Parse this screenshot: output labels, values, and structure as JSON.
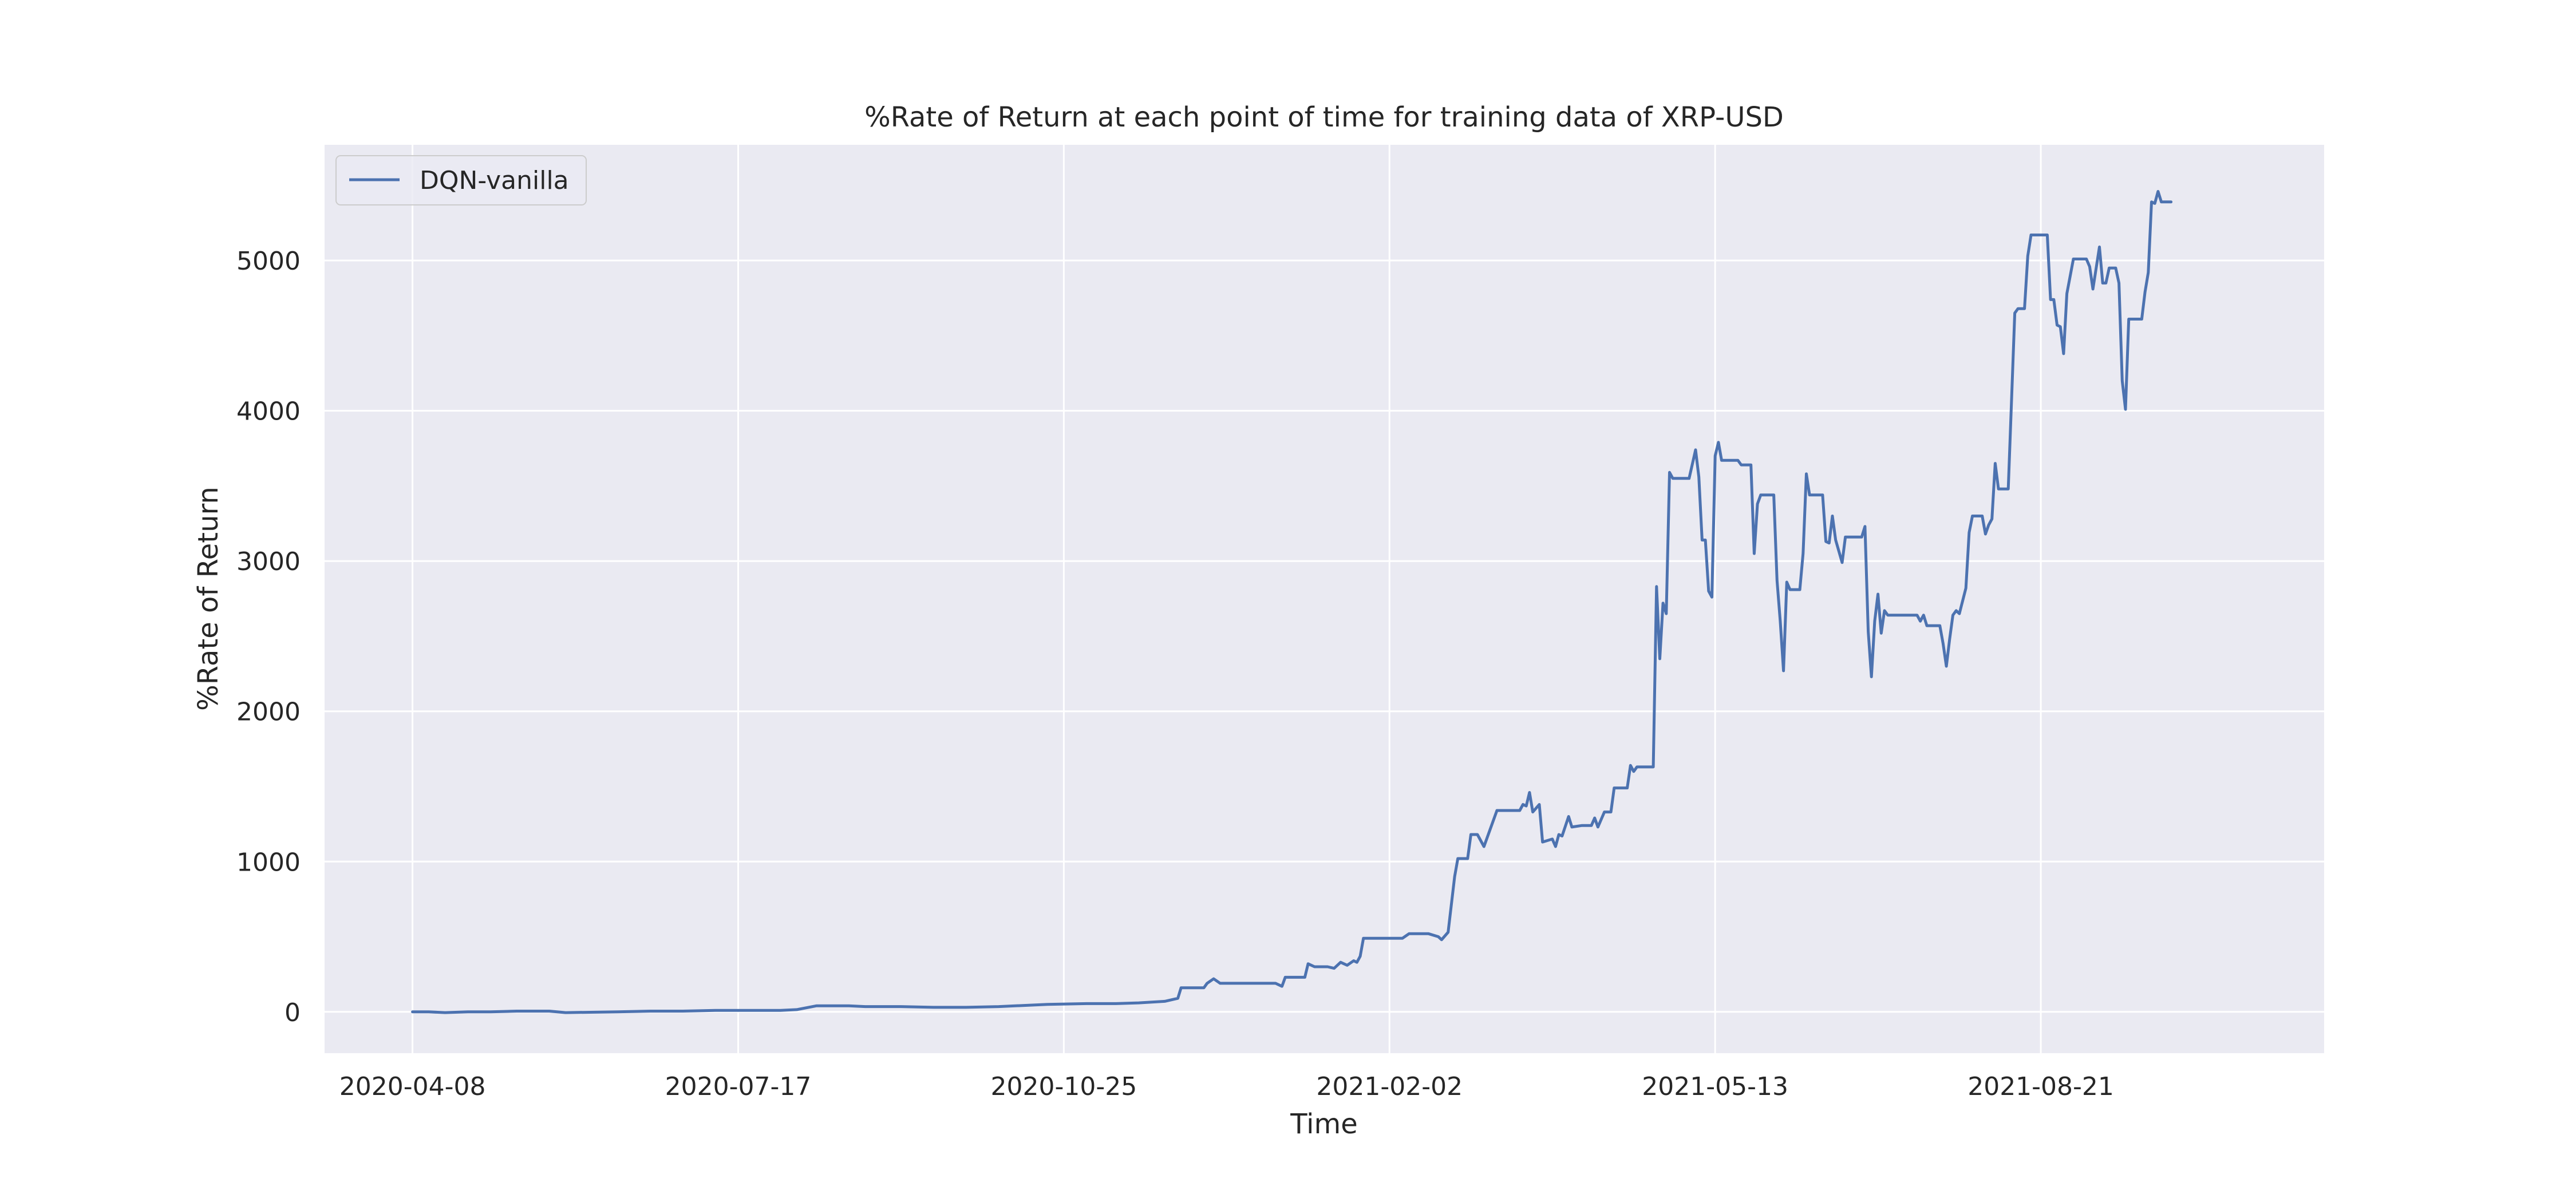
{
  "chart_data": {
    "type": "line",
    "title": "%Rate of Return at each point of time for training data of XRP-USD",
    "xlabel": "Time",
    "ylabel": "%Rate of Return",
    "xlim": [
      "2020-03-12",
      "2021-11-16"
    ],
    "ylim": [
      -275,
      5770
    ],
    "x_ticks": [
      "2020-04-08",
      "2020-07-17",
      "2020-10-25",
      "2021-02-02",
      "2021-05-13",
      "2021-08-21"
    ],
    "y_ticks": [
      0,
      1000,
      2000,
      3000,
      4000,
      5000
    ],
    "grid": true,
    "legend": {
      "position": "top-left",
      "entries": [
        "DQN-vanilla"
      ]
    },
    "colors": {
      "background": "#eaeaf2",
      "grid": "#ffffff",
      "line": "#4c72b0",
      "text": "#262626"
    },
    "series": [
      {
        "name": "DQN-vanilla",
        "points": [
          [
            "2020-04-08",
            0
          ],
          [
            "2020-04-13",
            0
          ],
          [
            "2020-04-18",
            -5
          ],
          [
            "2020-04-25",
            0
          ],
          [
            "2020-05-02",
            0
          ],
          [
            "2020-05-10",
            5
          ],
          [
            "2020-05-20",
            5
          ],
          [
            "2020-05-25",
            -5
          ],
          [
            "2020-06-10",
            0
          ],
          [
            "2020-06-20",
            5
          ],
          [
            "2020-06-30",
            5
          ],
          [
            "2020-07-10",
            10
          ],
          [
            "2020-07-30",
            10
          ],
          [
            "2020-08-04",
            15
          ],
          [
            "2020-08-10",
            40
          ],
          [
            "2020-08-20",
            40
          ],
          [
            "2020-08-25",
            35
          ],
          [
            "2020-09-05",
            35
          ],
          [
            "2020-09-15",
            30
          ],
          [
            "2020-09-25",
            30
          ],
          [
            "2020-10-05",
            35
          ],
          [
            "2020-10-20",
            50
          ],
          [
            "2020-11-01",
            55
          ],
          [
            "2020-11-10",
            55
          ],
          [
            "2020-11-17",
            60
          ],
          [
            "2020-11-25",
            70
          ],
          [
            "2020-11-29",
            90
          ],
          [
            "2020-11-30",
            160
          ],
          [
            "2020-12-07",
            160
          ],
          [
            "2020-12-08",
            190
          ],
          [
            "2020-12-10",
            220
          ],
          [
            "2020-12-12",
            190
          ],
          [
            "2020-12-24",
            190
          ],
          [
            "2020-12-29",
            190
          ],
          [
            "2020-12-31",
            170
          ],
          [
            "2021-01-01",
            230
          ],
          [
            "2021-01-07",
            230
          ],
          [
            "2021-01-08",
            320
          ],
          [
            "2021-01-10",
            300
          ],
          [
            "2021-01-14",
            300
          ],
          [
            "2021-01-16",
            290
          ],
          [
            "2021-01-18",
            330
          ],
          [
            "2021-01-20",
            310
          ],
          [
            "2021-01-22",
            340
          ],
          [
            "2021-01-23",
            330
          ],
          [
            "2021-01-24",
            370
          ],
          [
            "2021-01-25",
            490
          ],
          [
            "2021-01-30",
            490
          ],
          [
            "2021-02-06",
            490
          ],
          [
            "2021-02-08",
            520
          ],
          [
            "2021-02-14",
            520
          ],
          [
            "2021-02-17",
            500
          ],
          [
            "2021-02-18",
            480
          ],
          [
            "2021-02-20",
            530
          ],
          [
            "2021-02-22",
            900
          ],
          [
            "2021-02-23",
            1020
          ],
          [
            "2021-02-26",
            1020
          ],
          [
            "2021-02-27",
            1180
          ],
          [
            "2021-03-01",
            1180
          ],
          [
            "2021-03-03",
            1100
          ],
          [
            "2021-03-07",
            1340
          ],
          [
            "2021-03-14",
            1340
          ],
          [
            "2021-03-15",
            1380
          ],
          [
            "2021-03-16",
            1370
          ],
          [
            "2021-03-17",
            1460
          ],
          [
            "2021-03-18",
            1330
          ],
          [
            "2021-03-20",
            1380
          ],
          [
            "2021-03-21",
            1130
          ],
          [
            "2021-03-24",
            1150
          ],
          [
            "2021-03-25",
            1100
          ],
          [
            "2021-03-26",
            1180
          ],
          [
            "2021-03-27",
            1170
          ],
          [
            "2021-03-29",
            1300
          ],
          [
            "2021-03-30",
            1230
          ],
          [
            "2021-04-02",
            1240
          ],
          [
            "2021-04-05",
            1240
          ],
          [
            "2021-04-06",
            1290
          ],
          [
            "2021-04-07",
            1230
          ],
          [
            "2021-04-09",
            1330
          ],
          [
            "2021-04-11",
            1330
          ],
          [
            "2021-04-12",
            1490
          ],
          [
            "2021-04-16",
            1490
          ],
          [
            "2021-04-17",
            1640
          ],
          [
            "2021-04-18",
            1600
          ],
          [
            "2021-04-19",
            1630
          ],
          [
            "2021-04-24",
            1630
          ],
          [
            "2021-04-25",
            2830
          ],
          [
            "2021-04-26",
            2350
          ],
          [
            "2021-04-27",
            2720
          ],
          [
            "2021-04-28",
            2650
          ],
          [
            "2021-04-29",
            3590
          ],
          [
            "2021-04-30",
            3550
          ],
          [
            "2021-05-05",
            3550
          ],
          [
            "2021-05-07",
            3740
          ],
          [
            "2021-05-08",
            3560
          ],
          [
            "2021-05-09",
            3140
          ],
          [
            "2021-05-10",
            3140
          ],
          [
            "2021-05-11",
            2800
          ],
          [
            "2021-05-12",
            2760
          ],
          [
            "2021-05-13",
            3700
          ],
          [
            "2021-05-14",
            3790
          ],
          [
            "2021-05-15",
            3670
          ],
          [
            "2021-05-20",
            3670
          ],
          [
            "2021-05-21",
            3640
          ],
          [
            "2021-05-24",
            3640
          ],
          [
            "2021-05-25",
            3050
          ],
          [
            "2021-05-26",
            3380
          ],
          [
            "2021-05-27",
            3440
          ],
          [
            "2021-05-31",
            3440
          ],
          [
            "2021-06-01",
            2870
          ],
          [
            "2021-06-02",
            2600
          ],
          [
            "2021-06-03",
            2270
          ],
          [
            "2021-06-04",
            2860
          ],
          [
            "2021-06-05",
            2810
          ],
          [
            "2021-06-08",
            2810
          ],
          [
            "2021-06-09",
            3050
          ],
          [
            "2021-06-10",
            3580
          ],
          [
            "2021-06-11",
            3440
          ],
          [
            "2021-06-15",
            3440
          ],
          [
            "2021-06-16",
            3130
          ],
          [
            "2021-06-17",
            3120
          ],
          [
            "2021-06-18",
            3300
          ],
          [
            "2021-06-19",
            3140
          ],
          [
            "2021-06-21",
            2990
          ],
          [
            "2021-06-22",
            3160
          ],
          [
            "2021-06-27",
            3160
          ],
          [
            "2021-06-28",
            3230
          ],
          [
            "2021-06-29",
            2530
          ],
          [
            "2021-06-30",
            2230
          ],
          [
            "2021-07-01",
            2600
          ],
          [
            "2021-07-02",
            2780
          ],
          [
            "2021-07-03",
            2520
          ],
          [
            "2021-07-04",
            2670
          ],
          [
            "2021-07-05",
            2640
          ],
          [
            "2021-07-14",
            2640
          ],
          [
            "2021-07-15",
            2600
          ],
          [
            "2021-07-16",
            2640
          ],
          [
            "2021-07-17",
            2570
          ],
          [
            "2021-07-21",
            2570
          ],
          [
            "2021-07-22",
            2450
          ],
          [
            "2021-07-23",
            2300
          ],
          [
            "2021-07-24",
            2480
          ],
          [
            "2021-07-25",
            2640
          ],
          [
            "2021-07-26",
            2670
          ],
          [
            "2021-07-27",
            2650
          ],
          [
            "2021-07-29",
            2820
          ],
          [
            "2021-07-30",
            3190
          ],
          [
            "2021-07-31",
            3300
          ],
          [
            "2021-08-03",
            3300
          ],
          [
            "2021-08-04",
            3180
          ],
          [
            "2021-08-05",
            3240
          ],
          [
            "2021-08-06",
            3280
          ],
          [
            "2021-08-07",
            3650
          ],
          [
            "2021-08-08",
            3480
          ],
          [
            "2021-08-11",
            3480
          ],
          [
            "2021-08-13",
            4650
          ],
          [
            "2021-08-14",
            4680
          ],
          [
            "2021-08-16",
            4680
          ],
          [
            "2021-08-17",
            5030
          ],
          [
            "2021-08-18",
            5170
          ],
          [
            "2021-08-23",
            5170
          ],
          [
            "2021-08-24",
            4740
          ],
          [
            "2021-08-25",
            4740
          ],
          [
            "2021-08-26",
            4570
          ],
          [
            "2021-08-27",
            4560
          ],
          [
            "2021-08-28",
            4380
          ],
          [
            "2021-08-29",
            4780
          ],
          [
            "2021-08-31",
            5010
          ],
          [
            "2021-09-04",
            5010
          ],
          [
            "2021-09-05",
            4960
          ],
          [
            "2021-09-06",
            4810
          ],
          [
            "2021-09-07",
            4950
          ],
          [
            "2021-09-08",
            5090
          ],
          [
            "2021-09-09",
            4850
          ],
          [
            "2021-09-10",
            4850
          ],
          [
            "2021-09-11",
            4950
          ],
          [
            "2021-09-13",
            4950
          ],
          [
            "2021-09-14",
            4850
          ],
          [
            "2021-09-15",
            4200
          ],
          [
            "2021-09-16",
            4010
          ],
          [
            "2021-09-17",
            4610
          ],
          [
            "2021-09-21",
            4610
          ],
          [
            "2021-09-22",
            4790
          ],
          [
            "2021-09-23",
            4920
          ],
          [
            "2021-09-24",
            5390
          ],
          [
            "2021-09-25",
            5380
          ],
          [
            "2021-09-26",
            5460
          ],
          [
            "2021-09-27",
            5390
          ],
          [
            "2021-09-30",
            5390
          ]
        ]
      }
    ]
  }
}
